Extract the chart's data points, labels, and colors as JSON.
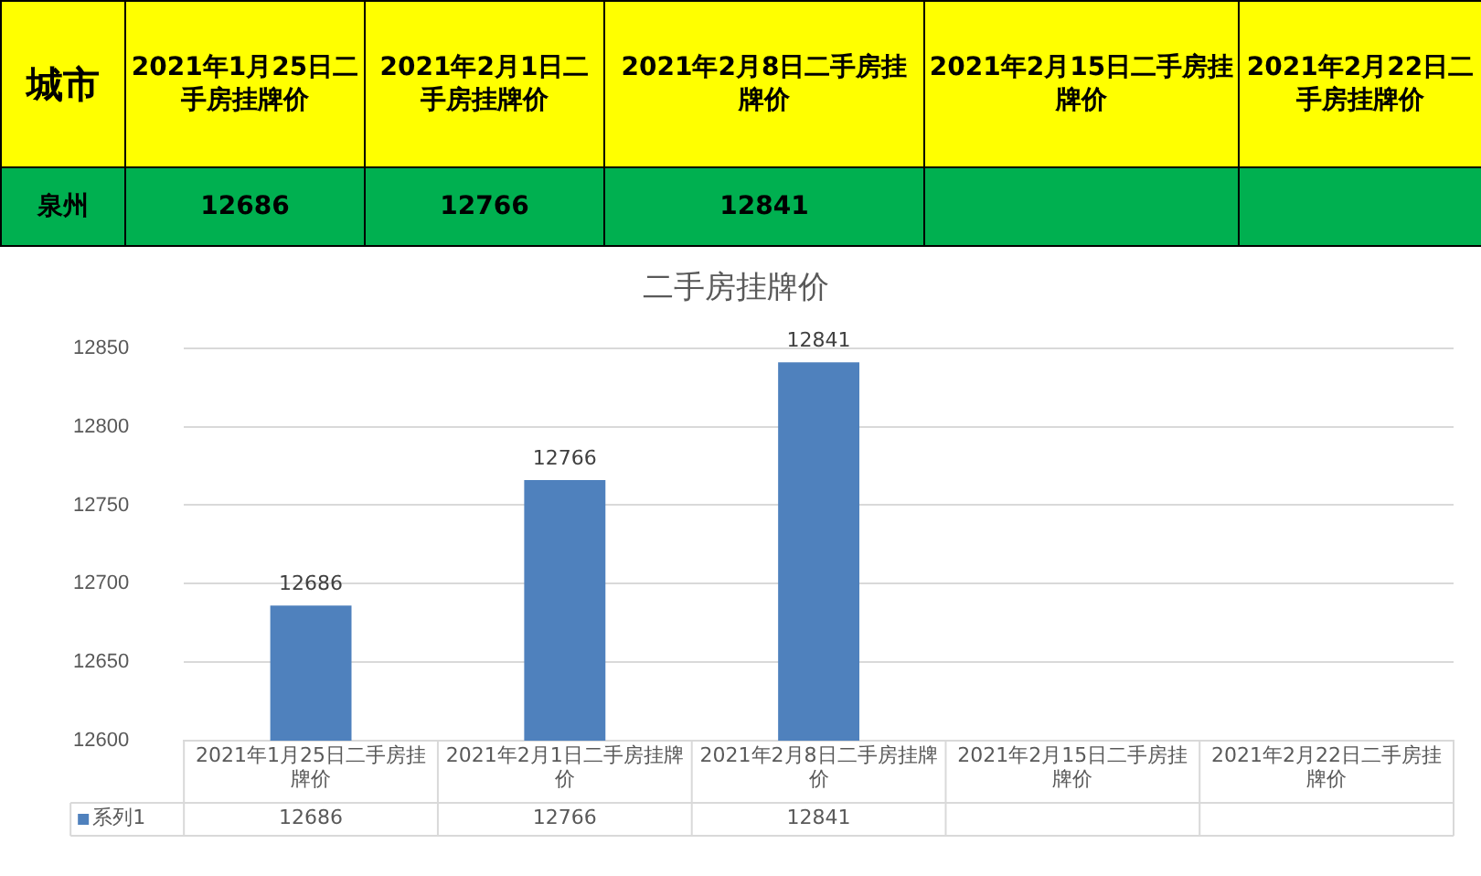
{
  "chart_data": {
    "type": "bar",
    "title": "二手房挂牌价",
    "categories": [
      "2021年1月25日二手房挂牌价",
      "2021年2月1日二手房挂牌价",
      "2021年2月8日二手房挂牌价",
      "2021年2月15日二手房挂牌价",
      "2021年2月22日二手房挂牌价"
    ],
    "series": [
      {
        "name": "系列1",
        "color": "#4f81bd",
        "values": [
          12686,
          12766,
          12841,
          null,
          null
        ],
        "value_labels": [
          "12686",
          "12766",
          "12841",
          null,
          null
        ]
      }
    ],
    "ylim": [
      12600,
      12850
    ],
    "yticks": [
      12600,
      12650,
      12700,
      12750,
      12800,
      12850
    ],
    "grid": "y",
    "data_labels": true,
    "annotations": [
      "城市",
      "泉州",
      "12686",
      "12766",
      "12841"
    ]
  }
}
